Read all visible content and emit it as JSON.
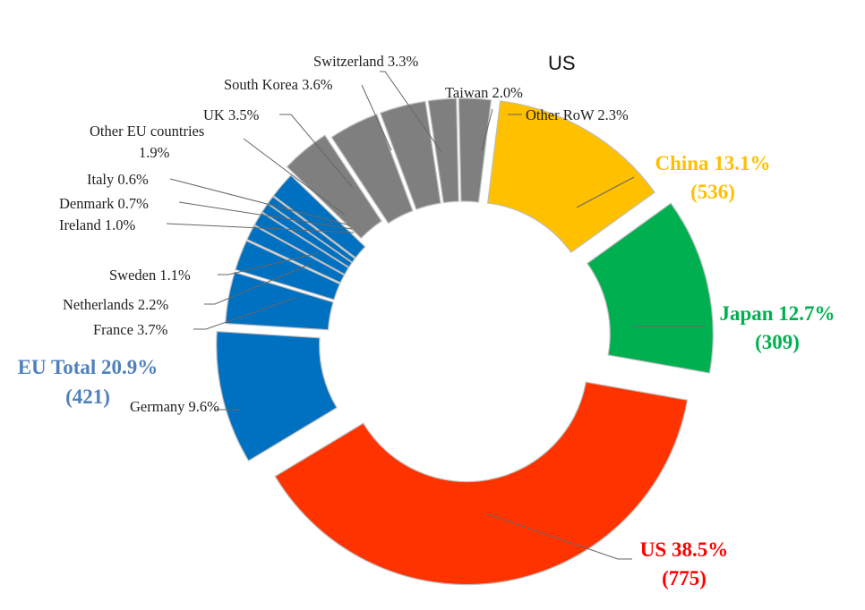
{
  "chart_data": {
    "type": "pie",
    "title": "US",
    "unit": "%",
    "slices": [
      {
        "label": "China 13.1%",
        "value": 13.1,
        "color": "#FFC000"
      },
      {
        "label": "Japan 12.7%",
        "value": 12.7,
        "color": "#00B050"
      },
      {
        "label": "US 38.5%",
        "value": 38.5,
        "color": "#FF3300"
      },
      {
        "label": "Germany 9.6%",
        "value": 9.6,
        "color": "#0070C0"
      },
      {
        "label": "France 3.7%",
        "value": 3.7,
        "color": "#0070C0"
      },
      {
        "label": "Netherlands 2.2%",
        "value": 2.2,
        "color": "#0070C0"
      },
      {
        "label": "Sweden 1.1%",
        "value": 1.1,
        "color": "#0070C0"
      },
      {
        "label": "Ireland 1.0%",
        "value": 1.0,
        "color": "#0070C0"
      },
      {
        "label": "Denmark 0.7%",
        "value": 0.7,
        "color": "#0070C0"
      },
      {
        "label": "Italy 0.6%",
        "value": 0.6,
        "color": "#0070C0"
      },
      {
        "label": "Other EU countries 1.9%",
        "value": 1.9,
        "color": "#0070C0"
      },
      {
        "label": "UK 3.5%",
        "value": 3.5,
        "color": "#7F7F7F"
      },
      {
        "label": "South Korea 3.6%",
        "value": 3.6,
        "color": "#7F7F7F"
      },
      {
        "label": "Switzerland 3.3%",
        "value": 3.3,
        "color": "#7F7F7F"
      },
      {
        "label": "Taiwan 2.0%",
        "value": 2.0,
        "color": "#7F7F7F"
      },
      {
        "label": "Other RoW 2.3%",
        "value": 2.3,
        "color": "#7F7F7F"
      }
    ],
    "group_labels": [
      {
        "text": "China 13.1%",
        "subtext": "(536)",
        "color": "#FFC000"
      },
      {
        "text": "Japan 12.7%",
        "subtext": "(309)",
        "color": "#00B050"
      },
      {
        "text": "US 38.5%",
        "subtext": "(775)",
        "color": "#FF0000"
      },
      {
        "text": "EU Total 20.9%",
        "subtext": "(421)",
        "color": "#4F81BD"
      }
    ],
    "small_labels": {
      "other_eu_line1": "Other EU countries",
      "other_eu_line2": "1.9%"
    }
  }
}
